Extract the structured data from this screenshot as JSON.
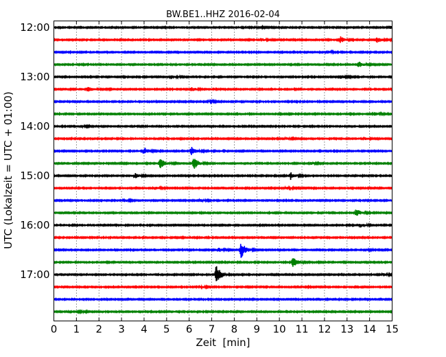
{
  "chart_data": {
    "type": "line",
    "title": "BW.BE1..HHZ 2016-02-04",
    "xlabel": "Zeit  [min]",
    "ylabel": "UTC (Lokalzeit = UTC + 01:00)",
    "xlim": [
      0,
      15
    ],
    "x_ticks": [
      0,
      1,
      2,
      3,
      4,
      5,
      6,
      7,
      8,
      9,
      10,
      11,
      12,
      13,
      14,
      15
    ],
    "x_tick_labels": [
      "0",
      "1",
      "2",
      "3",
      "4",
      "5",
      "6",
      "7",
      "8",
      "9",
      "10",
      "11",
      "12",
      "13",
      "14",
      "15"
    ],
    "y_tick_labels": [
      "12:00",
      "13:00",
      "14:00",
      "15:00",
      "16:00",
      "17:00"
    ],
    "y_tick_trace_index": [
      0,
      4,
      8,
      12,
      16,
      20
    ],
    "grid": {
      "vertical_dotted": true
    },
    "trace_colors": [
      "#000000",
      "#ff0000",
      "#0000ff",
      "#008000"
    ],
    "series": [
      {
        "start": "12:00",
        "events": [
          {
            "t": 9.0,
            "amp": 0.15
          },
          {
            "t": 14.9,
            "amp": 0.2
          }
        ]
      },
      {
        "start": "12:15",
        "events": [
          {
            "t": 9.2,
            "amp": 0.25
          },
          {
            "t": 12.7,
            "amp": 0.5
          },
          {
            "t": 14.3,
            "amp": 0.5
          },
          {
            "t": 15.0,
            "amp": 0.3
          }
        ]
      },
      {
        "start": "12:30",
        "events": [
          {
            "t": 12.1,
            "amp": 0.25
          }
        ]
      },
      {
        "start": "12:45",
        "events": [
          {
            "t": 13.5,
            "amp": 0.55
          }
        ]
      },
      {
        "start": "13:00",
        "events": [
          {
            "t": 5.2,
            "amp": 0.3
          },
          {
            "t": 12.7,
            "amp": 0.35
          }
        ]
      },
      {
        "start": "13:15",
        "events": [
          {
            "t": 1.5,
            "amp": 0.4
          },
          {
            "t": 6.1,
            "amp": 0.35
          }
        ]
      },
      {
        "start": "13:30",
        "events": [
          {
            "t": 6.9,
            "amp": 0.15
          }
        ]
      },
      {
        "start": "13:45",
        "events": [
          {
            "t": 14.2,
            "amp": 0.25
          }
        ]
      },
      {
        "start": "14:00",
        "events": [
          {
            "t": 1.3,
            "amp": 0.1
          }
        ]
      },
      {
        "start": "14:15",
        "events": [
          {
            "t": 10.3,
            "amp": 0.2
          },
          {
            "t": 13.8,
            "amp": 0.2
          }
        ]
      },
      {
        "start": "14:30",
        "events": [
          {
            "t": 4.0,
            "amp": 0.6
          },
          {
            "t": 6.1,
            "amp": 0.7
          }
        ]
      },
      {
        "start": "14:45",
        "events": [
          {
            "t": 4.7,
            "amp": 0.9
          },
          {
            "t": 6.2,
            "amp": 1.0
          },
          {
            "t": 11.4,
            "amp": 0.2
          }
        ]
      },
      {
        "start": "15:00",
        "events": [
          {
            "t": 3.6,
            "amp": 0.4
          },
          {
            "t": 10.5,
            "amp": 0.6
          }
        ]
      },
      {
        "start": "15:15",
        "events": [
          {
            "t": 4.5,
            "amp": 0.25
          },
          {
            "t": 10.3,
            "amp": 0.2
          }
        ]
      },
      {
        "start": "15:30",
        "events": [
          {
            "t": 3.1,
            "amp": 0.25
          },
          {
            "t": 6.5,
            "amp": 0.2
          }
        ]
      },
      {
        "start": "15:45",
        "events": [
          {
            "t": 13.4,
            "amp": 0.6
          }
        ]
      },
      {
        "start": "16:00",
        "events": [
          {
            "t": 13.6,
            "amp": 0.3
          }
        ]
      },
      {
        "start": "16:15",
        "events": []
      },
      {
        "start": "16:30",
        "events": [
          {
            "t": 7.3,
            "amp": 0.3
          },
          {
            "t": 8.3,
            "amp": 1.3
          },
          {
            "t": 13.8,
            "amp": 0.2
          }
        ]
      },
      {
        "start": "16:45",
        "events": [
          {
            "t": 10.6,
            "amp": 0.8
          }
        ]
      },
      {
        "start": "17:00",
        "events": [
          {
            "t": 7.2,
            "amp": 1.5
          },
          {
            "t": 14.6,
            "amp": 0.2
          }
        ]
      },
      {
        "start": "17:15",
        "events": [
          {
            "t": 6.5,
            "amp": 0.2
          }
        ]
      },
      {
        "start": "17:30",
        "events": []
      },
      {
        "start": "17:45",
        "events": [
          {
            "t": 1.1,
            "amp": 0.1
          }
        ]
      }
    ]
  }
}
